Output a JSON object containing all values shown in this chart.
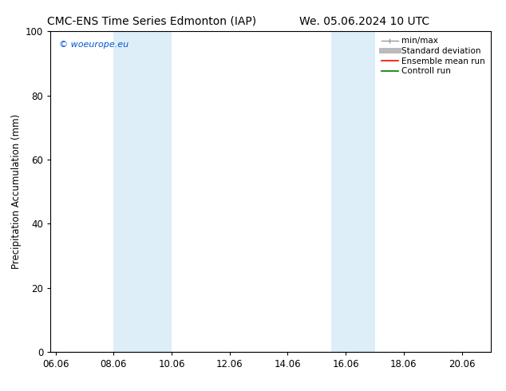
{
  "title_left": "CMC-ENS Time Series Edmonton (IAP)",
  "title_right": "We. 05.06.2024 10 UTC",
  "ylabel": "Precipitation Accumulation (mm)",
  "watermark": "© woeurope.eu",
  "watermark_color": "#0055cc",
  "ylim": [
    0,
    100
  ],
  "xlim_start": 5.83,
  "xlim_end": 21.0,
  "xtick_labels": [
    "06.06",
    "08.06",
    "10.06",
    "12.06",
    "14.06",
    "16.06",
    "18.06",
    "20.06"
  ],
  "xtick_positions": [
    6.0,
    8.0,
    10.0,
    12.0,
    14.0,
    16.0,
    18.0,
    20.0
  ],
  "ytick_positions": [
    0,
    20,
    40,
    60,
    80,
    100
  ],
  "shaded_bands": [
    {
      "x_start": 8.0,
      "x_end": 10.0,
      "color": "#ddeef8"
    },
    {
      "x_start": 15.5,
      "x_end": 17.0,
      "color": "#ddeef8"
    }
  ],
  "legend_items": [
    {
      "label": "min/max",
      "color": "#999999",
      "linewidth": 1.0,
      "has_caps": true
    },
    {
      "label": "Standard deviation",
      "color": "#bbbbbb",
      "linewidth": 5,
      "has_caps": false
    },
    {
      "label": "Ensemble mean run",
      "color": "#ff0000",
      "linewidth": 1.2,
      "has_caps": false
    },
    {
      "label": "Controll run",
      "color": "#007700",
      "linewidth": 1.2,
      "has_caps": false
    }
  ],
  "background_color": "#ffffff",
  "axes_linewidth": 0.8,
  "title_fontsize": 10,
  "label_fontsize": 8.5,
  "tick_fontsize": 8.5,
  "legend_fontsize": 7.5,
  "watermark_fontsize": 8
}
